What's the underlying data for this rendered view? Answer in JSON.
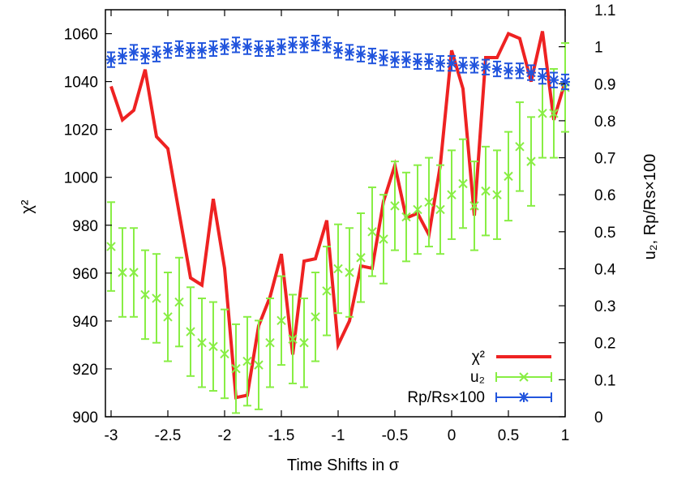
{
  "chart_data": {
    "type": "line",
    "title": "",
    "xlabel": "Time Shifts in σ",
    "ylabel": "χ²",
    "y2label": "u₂, Rp/Rs×100",
    "xlim": [
      -3.05,
      1.0
    ],
    "ylim": [
      900,
      1070
    ],
    "y2lim": [
      0,
      1.1
    ],
    "x_ticks": [
      -3,
      -2.5,
      -2,
      -1.5,
      -1,
      -0.5,
      0,
      0.5,
      1
    ],
    "x_tick_labels": [
      "-3",
      "-2.5",
      "-2",
      "-1.5",
      "-1",
      "-0.5",
      "0",
      "0.5",
      "1"
    ],
    "y_ticks": [
      900,
      920,
      940,
      960,
      980,
      1000,
      1020,
      1040,
      1060
    ],
    "y_tick_labels": [
      "900",
      "920",
      "940",
      "960",
      "980",
      "1000",
      "1020",
      "1040",
      "1060"
    ],
    "y2_ticks": [
      0,
      0.1,
      0.2,
      0.3,
      0.4,
      0.5,
      0.6,
      0.7,
      0.8,
      0.9,
      1,
      1.1
    ],
    "y2_tick_labels": [
      "0",
      "0.1",
      "0.2",
      "0.3",
      "0.4",
      "0.5",
      "0.6",
      "0.7",
      "0.8",
      "0.9",
      "1",
      "1.1"
    ],
    "legend_position": "bottom-right",
    "series": [
      {
        "name": "χ²",
        "axis": "left",
        "style": "line",
        "color": "#ee2222",
        "x": [
          -3.0,
          -2.9,
          -2.8,
          -2.7,
          -2.6,
          -2.5,
          -2.4,
          -2.3,
          -2.2,
          -2.1,
          -2.0,
          -1.9,
          -1.8,
          -1.7,
          -1.6,
          -1.5,
          -1.4,
          -1.3,
          -1.2,
          -1.1,
          -1.0,
          -0.9,
          -0.8,
          -0.7,
          -0.6,
          -0.5,
          -0.4,
          -0.3,
          -0.2,
          -0.1,
          0.0,
          0.1,
          0.2,
          0.3,
          0.4,
          0.5,
          0.6,
          0.7,
          0.8,
          0.9,
          1.0
        ],
        "values": [
          1038,
          1024,
          1028,
          1045,
          1017,
          1012,
          985,
          958,
          955,
          991,
          962,
          908,
          909,
          938,
          950,
          968,
          926,
          965,
          966,
          982,
          930,
          940,
          963,
          962,
          990,
          1005,
          983,
          985,
          976,
          1005,
          1053,
          1037,
          984,
          1050,
          1050,
          1060,
          1058,
          1040,
          1061,
          1024,
          1040
        ]
      },
      {
        "name": "u₂",
        "axis": "right",
        "style": "errorbar",
        "color": "#88ee44",
        "x": [
          -3.0,
          -2.9,
          -2.8,
          -2.7,
          -2.6,
          -2.5,
          -2.4,
          -2.3,
          -2.2,
          -2.1,
          -2.0,
          -1.9,
          -1.8,
          -1.7,
          -1.6,
          -1.5,
          -1.4,
          -1.3,
          -1.2,
          -1.1,
          -1.0,
          -0.9,
          -0.8,
          -0.7,
          -0.6,
          -0.5,
          -0.4,
          -0.3,
          -0.2,
          -0.1,
          0.0,
          0.1,
          0.2,
          0.3,
          0.4,
          0.5,
          0.6,
          0.7,
          0.8,
          0.9,
          1.0
        ],
        "values": [
          0.46,
          0.39,
          0.39,
          0.33,
          0.32,
          0.27,
          0.31,
          0.23,
          0.2,
          0.19,
          0.17,
          0.13,
          0.15,
          0.14,
          0.2,
          0.26,
          0.21,
          0.2,
          0.27,
          0.34,
          0.4,
          0.39,
          0.43,
          0.5,
          0.48,
          0.57,
          0.54,
          0.56,
          0.58,
          0.56,
          0.6,
          0.63,
          0.57,
          0.61,
          0.6,
          0.65,
          0.73,
          0.69,
          0.82,
          0.82,
          0.89
        ],
        "errors": [
          0.12,
          0.12,
          0.12,
          0.12,
          0.12,
          0.12,
          0.12,
          0.12,
          0.12,
          0.12,
          0.12,
          0.12,
          0.12,
          0.12,
          0.12,
          0.12,
          0.12,
          0.12,
          0.12,
          0.12,
          0.12,
          0.12,
          0.12,
          0.12,
          0.12,
          0.12,
          0.12,
          0.12,
          0.12,
          0.12,
          0.12,
          0.12,
          0.12,
          0.12,
          0.12,
          0.12,
          0.12,
          0.12,
          0.12,
          0.12,
          0.12
        ]
      },
      {
        "name": "Rp/Rs×100",
        "axis": "right",
        "style": "errorbar",
        "color": "#2255dd",
        "x": [
          -3.0,
          -2.9,
          -2.8,
          -2.7,
          -2.6,
          -2.5,
          -2.4,
          -2.3,
          -2.2,
          -2.1,
          -2.0,
          -1.9,
          -1.8,
          -1.7,
          -1.6,
          -1.5,
          -1.4,
          -1.3,
          -1.2,
          -1.1,
          -1.0,
          -0.9,
          -0.8,
          -0.7,
          -0.6,
          -0.5,
          -0.4,
          -0.3,
          -0.2,
          -0.1,
          0.0,
          0.1,
          0.2,
          0.3,
          0.4,
          0.5,
          0.6,
          0.7,
          0.8,
          0.9,
          1.0
        ],
        "values": [
          0.965,
          0.975,
          0.985,
          0.975,
          0.98,
          0.99,
          0.995,
          0.99,
          0.99,
          0.995,
          1.0,
          1.005,
          1.0,
          0.995,
          0.995,
          1.0,
          1.005,
          1.005,
          1.01,
          1.005,
          0.99,
          0.985,
          0.98,
          0.975,
          0.97,
          0.965,
          0.965,
          0.96,
          0.96,
          0.955,
          0.955,
          0.95,
          0.95,
          0.945,
          0.94,
          0.935,
          0.935,
          0.93,
          0.92,
          0.91,
          0.905
        ],
        "errors": [
          0.02,
          0.02,
          0.02,
          0.02,
          0.02,
          0.02,
          0.02,
          0.02,
          0.02,
          0.02,
          0.02,
          0.02,
          0.02,
          0.02,
          0.02,
          0.02,
          0.02,
          0.02,
          0.02,
          0.02,
          0.02,
          0.02,
          0.02,
          0.02,
          0.02,
          0.02,
          0.02,
          0.02,
          0.02,
          0.02,
          0.02,
          0.02,
          0.02,
          0.02,
          0.02,
          0.02,
          0.02,
          0.02,
          0.02,
          0.02,
          0.02
        ]
      }
    ]
  }
}
